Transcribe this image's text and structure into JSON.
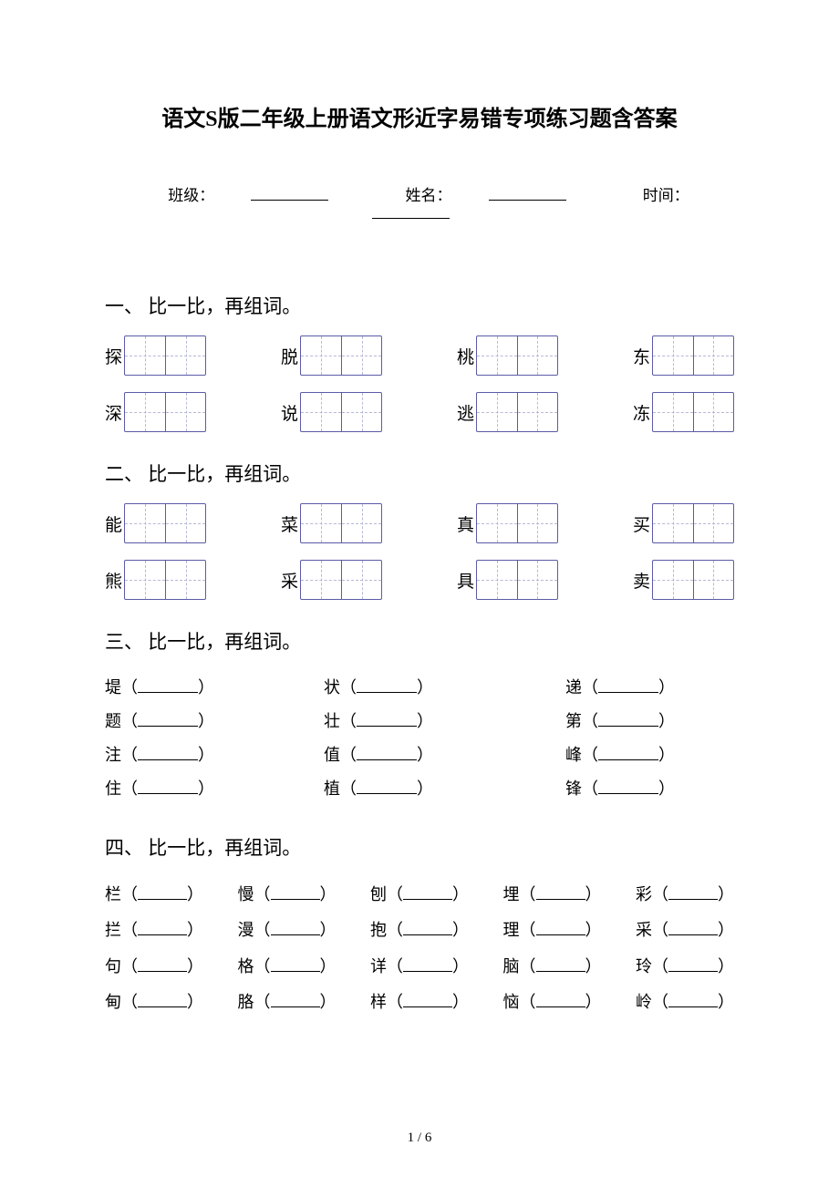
{
  "title": "语文S版二年级上册语文形近字易错专项练习题含答案",
  "meta": {
    "class_label": "班级：",
    "name_label": "姓名：",
    "time_label": "时间："
  },
  "sections": {
    "s1": {
      "head": "一、 比一比，再组词。",
      "row1": [
        "探",
        "脱",
        "桃",
        "东"
      ],
      "row2": [
        "深",
        "说",
        "逃",
        "冻"
      ]
    },
    "s2": {
      "head": "二、 比一比，再组词。",
      "row1": [
        "能",
        "菜",
        "真",
        "买"
      ],
      "row2": [
        "熊",
        "采",
        "具",
        "卖"
      ]
    },
    "s3": {
      "head": "三、 比一比，再组词。",
      "rows": [
        [
          "堤",
          "状",
          "递"
        ],
        [
          "题",
          "壮",
          "第"
        ],
        [
          "注",
          "值",
          "峰"
        ],
        [
          "住",
          "植",
          "锋"
        ]
      ]
    },
    "s4": {
      "head": "四、 比一比，再组词。",
      "rows": [
        [
          "栏",
          "慢",
          "刨",
          "埋",
          "彩"
        ],
        [
          "拦",
          "漫",
          "抱",
          "理",
          "采"
        ],
        [
          "句",
          "格",
          "详",
          "脑",
          "玲"
        ],
        [
          "甸",
          "胳",
          "样",
          "恼",
          "岭"
        ]
      ]
    }
  },
  "page_number": "1 / 6",
  "style": {
    "box_border_color": "#5b5ba8",
    "box_dash_color": "#b8b8d8",
    "text_color": "#000000",
    "background_color": "#ffffff",
    "title_fontsize": 24,
    "section_head_fontsize": 21,
    "body_fontsize": 18
  }
}
